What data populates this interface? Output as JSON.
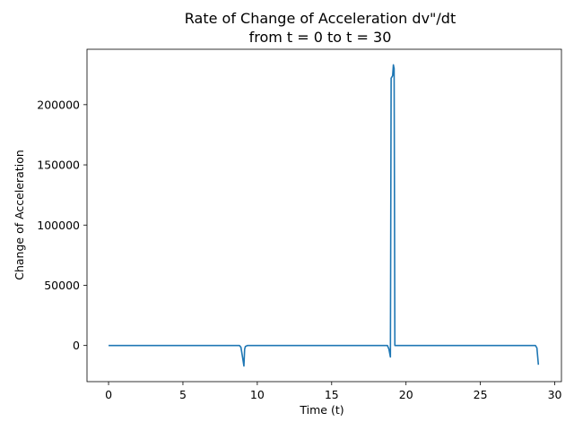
{
  "chart_data": {
    "type": "line",
    "title_line1": "Rate of Change of Acceleration dv\"/dt",
    "title_line2": "from t = 0 to t = 30",
    "xlabel": "Time (t)",
    "ylabel": "Change of Acceleration",
    "xlim": [
      -1.45,
      30.45
    ],
    "ylim": [
      -30000,
      246000
    ],
    "x_ticks": [
      0,
      5,
      10,
      15,
      20,
      25,
      30
    ],
    "y_ticks": [
      0,
      50000,
      100000,
      150000,
      200000
    ],
    "grid": false,
    "line_color": "#1f77b4",
    "series": [
      {
        "points": [
          [
            0,
            0
          ],
          [
            8.8,
            0
          ],
          [
            8.9,
            -1500
          ],
          [
            9.0,
            -9000
          ],
          [
            9.1,
            -17000
          ],
          [
            9.15,
            -3000
          ],
          [
            9.2,
            -800
          ],
          [
            9.35,
            0
          ],
          [
            18.75,
            0
          ],
          [
            18.85,
            -3000
          ],
          [
            18.95,
            -9500
          ],
          [
            19.0,
            222000
          ],
          [
            19.1,
            224000
          ],
          [
            19.15,
            233000
          ],
          [
            19.2,
            230000
          ],
          [
            19.25,
            0
          ],
          [
            28.7,
            0
          ],
          [
            28.8,
            -2000
          ],
          [
            28.9,
            -16000
          ]
        ]
      }
    ]
  }
}
